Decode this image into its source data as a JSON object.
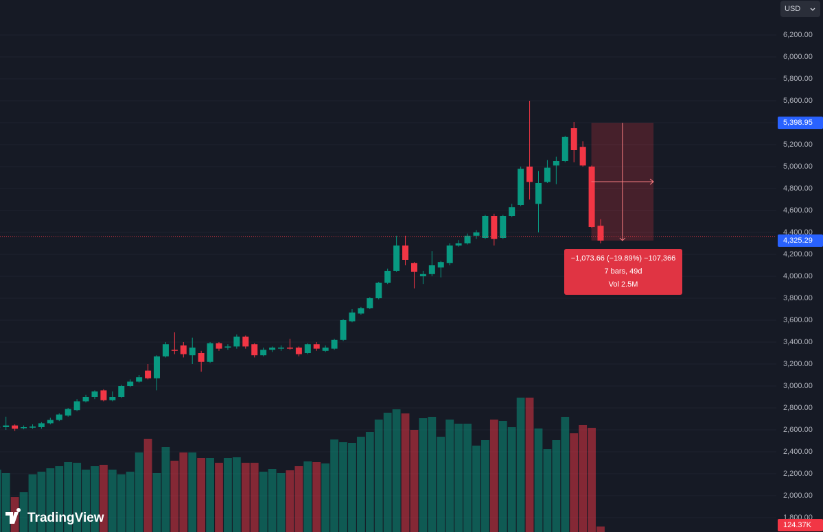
{
  "chart_data": {
    "type": "candlestick",
    "currency": "USD",
    "brand": "TradingView",
    "ylim": [
      1668.75,
      6518.75
    ],
    "yticks": [
      {
        "value": 1800,
        "label": "1,800.00"
      },
      {
        "value": 2000,
        "label": "2,000.00"
      },
      {
        "value": 2200,
        "label": "2,200.00"
      },
      {
        "value": 2400,
        "label": "2,400.00"
      },
      {
        "value": 2600,
        "label": "2,600.00"
      },
      {
        "value": 2800,
        "label": "2,800.00"
      },
      {
        "value": 3000,
        "label": "3,000.00"
      },
      {
        "value": 3200,
        "label": "3,200.00"
      },
      {
        "value": 3400,
        "label": "3,400.00"
      },
      {
        "value": 3600,
        "label": "3,600.00"
      },
      {
        "value": 3800,
        "label": "3,800.00"
      },
      {
        "value": 4000,
        "label": "4,000.00"
      },
      {
        "value": 4200,
        "label": "4,200.00"
      },
      {
        "value": 4400,
        "label": "4,400.00"
      },
      {
        "value": 4600,
        "label": "4,600.00"
      },
      {
        "value": 4800,
        "label": "4,800.00"
      },
      {
        "value": 5000,
        "label": "5,000.00"
      },
      {
        "value": 5200,
        "label": "5,200.00"
      },
      {
        "value": 5400,
        "label": "5,400.00"
      },
      {
        "value": 5600,
        "label": "5,600.00"
      },
      {
        "value": 5800,
        "label": "5,800.00"
      },
      {
        "value": 6000,
        "label": "6,000.00"
      },
      {
        "value": 6200,
        "label": "6,200.00"
      }
    ],
    "up_color": "#089981",
    "down_color": "#f23645",
    "open": [
      2620,
      2625,
      2640,
      2615,
      2620,
      2625,
      2660,
      2690,
      2730,
      2780,
      2860,
      2900,
      2960,
      2870,
      2900,
      3000,
      3040,
      3140,
      3070,
      3270,
      3330,
      3370,
      3280,
      3300,
      3220,
      3390,
      3350,
      3360,
      3450,
      3380,
      3280,
      3330,
      3340,
      3350,
      3350,
      3300,
      3380,
      3320,
      3340,
      3420,
      3590,
      3660,
      3710,
      3800,
      3940,
      4050,
      4280,
      4120,
      4000,
      4020,
      4080,
      4120,
      4280,
      4300,
      4370,
      4350,
      4550,
      4350,
      4550,
      4650,
      5000,
      4660,
      4860,
      5010,
      5050,
      5350,
      5180,
      5000,
      4460
    ],
    "high": [
      2640,
      2720,
      2650,
      2640,
      2650,
      2670,
      2710,
      2750,
      2800,
      2880,
      2920,
      2960,
      2970,
      2950,
      3010,
      3060,
      3100,
      3200,
      3280,
      3400,
      3490,
      3400,
      3440,
      3320,
      3400,
      3400,
      3380,
      3470,
      3460,
      3390,
      3350,
      3360,
      3370,
      3430,
      3360,
      3390,
      3400,
      3370,
      3430,
      3610,
      3700,
      3720,
      3810,
      3950,
      4070,
      4370,
      4370,
      4130,
      4050,
      4230,
      4140,
      4300,
      4330,
      4390,
      4420,
      4560,
      4570,
      4560,
      4660,
      5000,
      5600,
      4960,
      5060,
      5090,
      5280,
      5406,
      5230,
      5010,
      4520
    ],
    "low": [
      2610,
      2600,
      2590,
      2605,
      2610,
      2610,
      2650,
      2680,
      2720,
      2770,
      2850,
      2880,
      2860,
      2860,
      2890,
      2990,
      3030,
      3060,
      2960,
      3260,
      3290,
      3260,
      3200,
      3130,
      3210,
      3320,
      3330,
      3340,
      3340,
      3260,
      3270,
      3310,
      3320,
      3330,
      3270,
      3290,
      3320,
      3310,
      3330,
      3410,
      3580,
      3650,
      3700,
      3790,
      3930,
      4040,
      4100,
      3890,
      3930,
      4000,
      3990,
      4100,
      4270,
      4290,
      4340,
      4340,
      4280,
      4340,
      4540,
      4640,
      4700,
      4400,
      4850,
      4840,
      5040,
      5040,
      5000,
      4440,
      4300
    ],
    "close": [
      2630,
      2640,
      2610,
      2625,
      2630,
      2660,
      2690,
      2740,
      2790,
      2860,
      2900,
      2950,
      2870,
      2900,
      3000,
      3040,
      3080,
      3070,
      3270,
      3380,
      3320,
      3290,
      3350,
      3220,
      3390,
      3340,
      3360,
      3450,
      3360,
      3280,
      3330,
      3350,
      3350,
      3340,
      3290,
      3380,
      3340,
      3350,
      3420,
      3600,
      3670,
      3710,
      3800,
      3940,
      4050,
      4280,
      4150,
      4040,
      4020,
      4100,
      4130,
      4280,
      4300,
      4370,
      4400,
      4550,
      4340,
      4550,
      4630,
      4980,
      4860,
      4850,
      4990,
      5050,
      5270,
      5150,
      5010,
      4450,
      4325.29
    ],
    "volume": {
      "values": [
        1410000,
        1333000,
        790000,
        899000,
        1302000,
        1364000,
        1441000,
        1488000,
        1581000,
        1565000,
        1410000,
        1488000,
        1519000,
        1410000,
        1302000,
        1364000,
        1798000,
        2108000,
        1333000,
        1922000,
        1612000,
        1798000,
        1798000,
        1674000,
        1674000,
        1565000,
        1674000,
        1689000,
        1565000,
        1565000,
        1364000,
        1426000,
        1333000,
        1395000,
        1488000,
        1596000,
        1581000,
        1550000,
        2092000,
        2030000,
        2015000,
        2154000,
        2263000,
        2542000,
        2697000,
        2774000,
        2681000,
        2309000,
        2573000,
        2604000,
        2154000,
        2542000,
        2449000,
        2449000,
        1953000,
        2077000,
        2542000,
        2511000,
        2371000,
        3038000,
        3038000,
        2340000,
        1875000,
        2077000,
        2604000,
        2232000,
        2418000,
        2356000,
        124370
      ],
      "last_label": "124.37K"
    },
    "price_labels": [
      {
        "value": 5398.95,
        "label": "5,398.95"
      },
      {
        "value": 4325.29,
        "label": "4,325.29"
      }
    ],
    "measure": {
      "change": "−1,073.66 (−19.89%) −107,366",
      "bars": "7 bars, 49d",
      "volume": "Vol 2.5M"
    }
  }
}
